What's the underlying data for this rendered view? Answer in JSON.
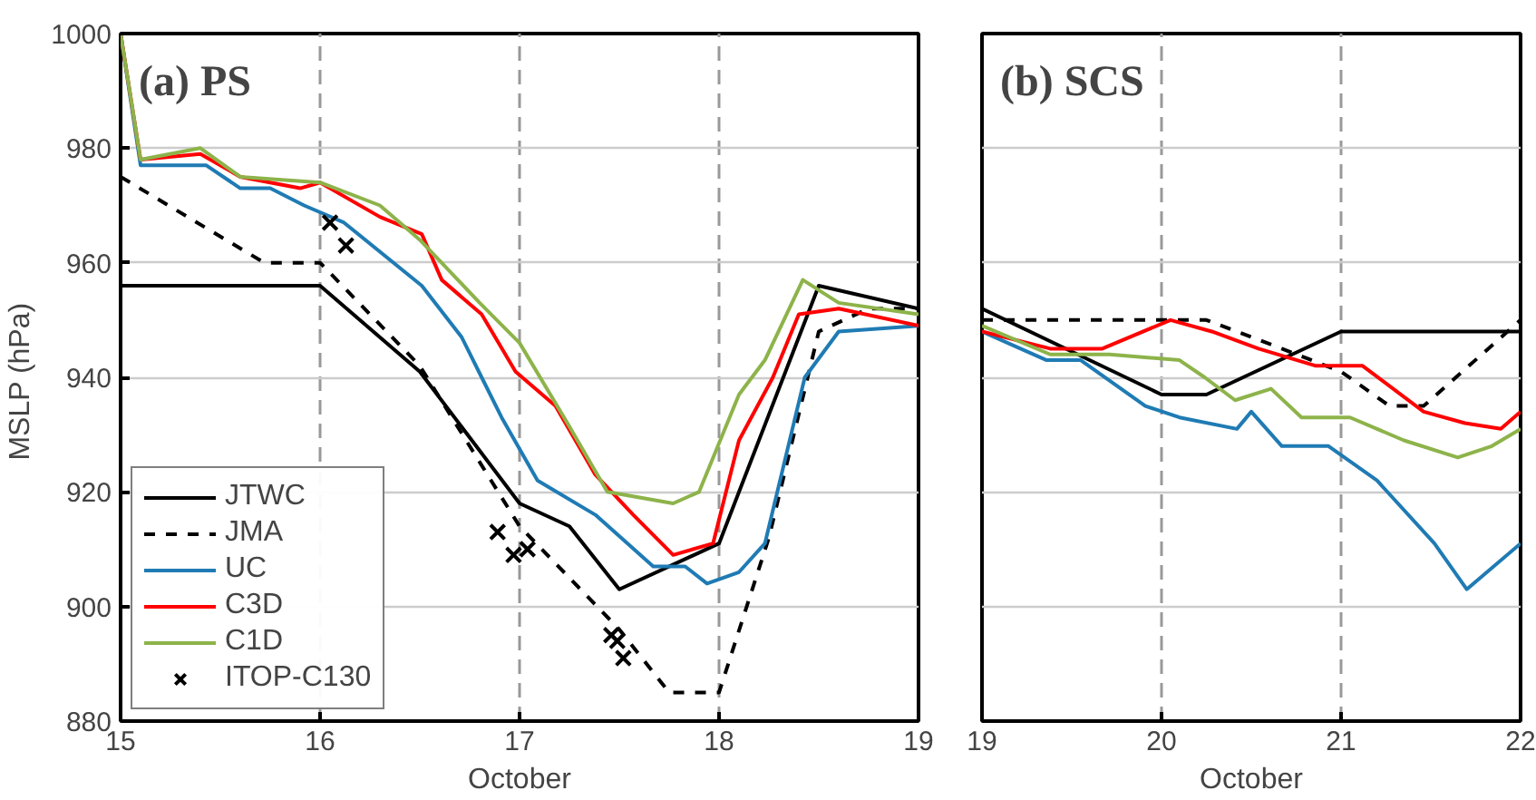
{
  "chart_data": [
    {
      "type": "line",
      "title": "(a) PS",
      "xlabel": "October",
      "ylabel": "MSLP  (hPa)",
      "xlim": [
        15,
        19
      ],
      "ylim": [
        880,
        1000
      ],
      "xticks": [
        15,
        16,
        17,
        18,
        19
      ],
      "yticks": [
        880,
        900,
        920,
        940,
        960,
        980,
        1000
      ],
      "grid": true,
      "legend": "bottom left",
      "series": [
        {
          "name": "JTWC",
          "color": "#000000",
          "line_style": "solid",
          "x": [
            15,
            16,
            16.5,
            17,
            17.25,
            17.5,
            18,
            18.5,
            19
          ],
          "values": [
            956,
            956,
            941,
            918,
            914,
            903,
            911,
            956,
            952
          ]
        },
        {
          "name": "JMA",
          "color": "#000000",
          "line_style": "dashed",
          "x": [
            15,
            15.72,
            16,
            16.5,
            17,
            17.5,
            17.75,
            18,
            18.25,
            18.5,
            18.75,
            19
          ],
          "values": [
            975,
            960,
            960,
            942,
            914,
            896,
            885,
            885,
            912,
            948,
            952,
            952
          ]
        },
        {
          "name": "UC",
          "color": "#1f7bb4",
          "line_style": "solid",
          "x": [
            15,
            15.1,
            15.43,
            15.6,
            15.75,
            15.92,
            16.12,
            16.51,
            16.71,
            16.81,
            16.91,
            17.09,
            17.38,
            17.67,
            17.83,
            17.94,
            18.1,
            18.23,
            18.43,
            18.6,
            19
          ],
          "values": [
            1000,
            977,
            977,
            973,
            973,
            970,
            967,
            956,
            947,
            940,
            933,
            922,
            916,
            907,
            907,
            904,
            906,
            911,
            940,
            948,
            949
          ]
        },
        {
          "name": "C3D",
          "color": "#ff0000",
          "line_style": "solid",
          "x": [
            15,
            15.1,
            15.4,
            15.6,
            15.9,
            16,
            16.3,
            16.51,
            16.61,
            16.81,
            16.98,
            17.18,
            17.38,
            17.57,
            17.77,
            17.97,
            18.1,
            18.27,
            18.4,
            18.6,
            19
          ],
          "values": [
            1000,
            978,
            979,
            975,
            973,
            974,
            968,
            965,
            957,
            951,
            941,
            935,
            923,
            916,
            909,
            911,
            929,
            940,
            951,
            952,
            949
          ]
        },
        {
          "name": "C1D",
          "color": "#8db34a",
          "line_style": "solid",
          "x": [
            15,
            15.1,
            15.4,
            15.6,
            16,
            16.3,
            16.5,
            16.8,
            17,
            17.24,
            17.44,
            17.77,
            17.9,
            18.1,
            18.23,
            18.42,
            18.6,
            19
          ],
          "values": [
            1000,
            978,
            980,
            975,
            974,
            970,
            964,
            953,
            946,
            932,
            920,
            918,
            920,
            937,
            943,
            957,
            953,
            951
          ]
        },
        {
          "name": "ITOP-C130",
          "type": "scatter",
          "marker": "cross",
          "color": "#000000",
          "x": [
            16.05,
            16.13,
            16.89,
            16.97,
            17.04,
            17.46,
            17.49,
            17.52
          ],
          "values": [
            967,
            963,
            913,
            909,
            910,
            895,
            894,
            891
          ]
        }
      ]
    },
    {
      "type": "line",
      "title": "(b) SCS",
      "xlabel": "October",
      "xlim": [
        19,
        22
      ],
      "ylim": [
        880,
        1000
      ],
      "xticks": [
        19,
        20,
        21,
        22
      ],
      "yticks": [
        880,
        900,
        920,
        940,
        960,
        980,
        1000
      ],
      "grid": true,
      "tick_labels": "x",
      "series": [
        {
          "color": "#000000",
          "line_style": "solid",
          "x": [
            19,
            20,
            20.25,
            21,
            22
          ],
          "values": [
            952,
            937,
            937,
            948,
            948
          ]
        },
        {
          "color": "#000000",
          "line_style": "dashed",
          "x": [
            19,
            20.25,
            20.67,
            21,
            21.27,
            21.46,
            22
          ],
          "values": [
            950,
            950,
            945,
            941,
            935,
            935,
            950
          ]
        },
        {
          "color": "#1f7bb4",
          "line_style": "solid",
          "x": [
            19,
            19.36,
            19.55,
            19.91,
            20.1,
            20.42,
            20.5,
            20.67,
            20.93,
            21.2,
            21.52,
            21.7,
            22
          ],
          "values": [
            948,
            943,
            943,
            935,
            933,
            931,
            934,
            928,
            928,
            922,
            911,
            903,
            911
          ]
        },
        {
          "color": "#ff0000",
          "line_style": "solid",
          "x": [
            19,
            19.38,
            19.67,
            20.05,
            20.28,
            20.54,
            20.86,
            21.12,
            21.46,
            21.69,
            21.89,
            22
          ],
          "values": [
            948,
            945,
            945,
            950,
            948,
            945,
            942,
            942,
            934,
            932,
            931,
            934
          ]
        },
        {
          "color": "#8db34a",
          "line_style": "solid",
          "x": [
            19,
            19.38,
            19.71,
            20.1,
            20.24,
            20.41,
            20.61,
            20.78,
            21.05,
            21.35,
            21.65,
            21.84,
            22
          ],
          "values": [
            949,
            944,
            944,
            943,
            940,
            936,
            938,
            933,
            933,
            929,
            926,
            928,
            931
          ]
        }
      ]
    }
  ]
}
